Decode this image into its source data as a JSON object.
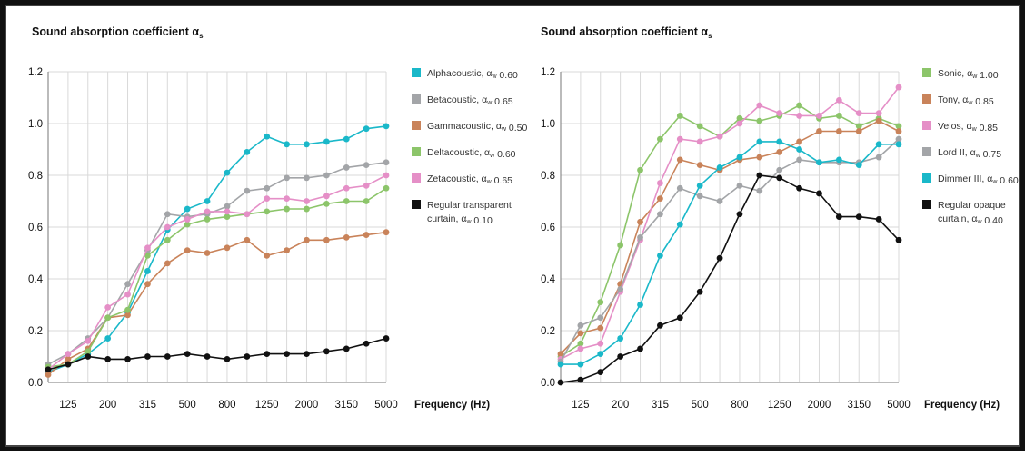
{
  "chart_data": [
    {
      "type": "line",
      "title": "Sound absorption coefficient α",
      "title_subscript": "s",
      "xlabel": "Frequency (Hz)",
      "ylabel": "",
      "ylim": [
        0,
        1.2
      ],
      "y_ticks": [
        "0.0",
        "0.2",
        "0.4",
        "0.6",
        "0.8",
        "1.0",
        "1.2"
      ],
      "x_frequencies": [
        100,
        125,
        160,
        200,
        250,
        315,
        400,
        500,
        630,
        800,
        1000,
        1250,
        1600,
        2000,
        2500,
        3150,
        4000,
        5000
      ],
      "x_tick_labels": [
        "125",
        "200",
        "315",
        "500",
        "800",
        "1250",
        "2000",
        "3150",
        "5000"
      ],
      "grid": true,
      "legend_position": "right",
      "series": [
        {
          "name": "Alphacoustic, αw 0.60",
          "color": "#1ab8c9",
          "values": [
            0.04,
            0.07,
            0.11,
            0.17,
            0.27,
            0.43,
            0.59,
            0.67,
            0.7,
            0.81,
            0.89,
            0.95,
            0.92,
            0.92,
            0.93,
            0.94,
            0.98,
            0.99
          ]
        },
        {
          "name": "Betacoustic, αw 0.65",
          "color": "#a3a5a8",
          "values": [
            0.07,
            0.11,
            0.17,
            0.25,
            0.38,
            0.51,
            0.65,
            0.64,
            0.65,
            0.68,
            0.74,
            0.75,
            0.79,
            0.79,
            0.8,
            0.83,
            0.84,
            0.85
          ]
        },
        {
          "name": "Gammacoustic, αw 0.50",
          "color": "#c9835a",
          "values": [
            0.03,
            0.09,
            0.13,
            0.25,
            0.26,
            0.38,
            0.46,
            0.51,
            0.5,
            0.52,
            0.55,
            0.49,
            0.51,
            0.55,
            0.55,
            0.56,
            0.57,
            0.58
          ]
        },
        {
          "name": "Deltacoustic, αw 0.60",
          "color": "#8cc56a",
          "values": [
            0.06,
            0.07,
            0.12,
            0.25,
            0.28,
            0.49,
            0.55,
            0.61,
            0.63,
            0.64,
            0.65,
            0.66,
            0.67,
            0.67,
            0.69,
            0.7,
            0.7,
            0.75
          ]
        },
        {
          "name": "Zetacoustic, αw 0.65",
          "color": "#e58fc7",
          "values": [
            0.05,
            0.11,
            0.16,
            0.29,
            0.34,
            0.52,
            0.6,
            0.63,
            0.66,
            0.66,
            0.65,
            0.71,
            0.71,
            0.7,
            0.72,
            0.75,
            0.76,
            0.8
          ]
        },
        {
          "name": "Regular transparent curtain, αw 0.10",
          "color": "#111111",
          "values": [
            0.05,
            0.07,
            0.1,
            0.09,
            0.09,
            0.1,
            0.1,
            0.11,
            0.1,
            0.09,
            0.1,
            0.11,
            0.11,
            0.11,
            0.12,
            0.13,
            0.15,
            0.17
          ]
        }
      ],
      "legend_lines": [
        [
          "Alphacoustic, αw 0.60"
        ],
        [
          "Betacoustic, αw 0.65"
        ],
        [
          "Gammacoustic, αw 0.50"
        ],
        [
          "Deltacoustic, αw 0.60"
        ],
        [
          "Zetacoustic, αw 0.65"
        ],
        [
          "Regular transparent",
          "curtain, αw 0.10"
        ]
      ]
    },
    {
      "type": "line",
      "title": "Sound absorption coefficient α",
      "title_subscript": "s",
      "xlabel": "Frequency (Hz)",
      "ylabel": "",
      "ylim": [
        0,
        1.2
      ],
      "y_ticks": [
        "0.0",
        "0.2",
        "0.4",
        "0.6",
        "0.8",
        "1.0",
        "1.2"
      ],
      "x_frequencies": [
        100,
        125,
        160,
        200,
        250,
        315,
        400,
        500,
        630,
        800,
        1000,
        1250,
        1600,
        2000,
        2500,
        3150,
        4000,
        5000
      ],
      "x_tick_labels": [
        "125",
        "200",
        "315",
        "500",
        "800",
        "1250",
        "2000",
        "3150",
        "5000"
      ],
      "grid": true,
      "legend_position": "right",
      "series": [
        {
          "name": "Sonic, αw 1.00",
          "color": "#8cc56a",
          "values": [
            0.1,
            0.15,
            0.31,
            0.53,
            0.82,
            0.94,
            1.03,
            0.99,
            0.95,
            1.02,
            1.01,
            1.03,
            1.07,
            1.02,
            1.03,
            0.99,
            1.02,
            0.99
          ]
        },
        {
          "name": "Tony, αw 0.85",
          "color": "#c9835a",
          "values": [
            0.11,
            0.19,
            0.21,
            0.38,
            0.62,
            0.71,
            0.86,
            0.84,
            0.82,
            0.86,
            0.87,
            0.89,
            0.93,
            0.97,
            0.97,
            0.97,
            1.01,
            0.97
          ]
        },
        {
          "name": "Velos, αw 0.85",
          "color": "#e58fc7",
          "values": [
            0.09,
            0.13,
            0.15,
            0.35,
            0.55,
            0.77,
            0.94,
            0.93,
            0.95,
            1.0,
            1.07,
            1.04,
            1.03,
            1.03,
            1.09,
            1.04,
            1.04,
            1.14
          ]
        },
        {
          "name": "Lord II, αw 0.75",
          "color": "#a3a5a8",
          "values": [
            0.08,
            0.22,
            0.25,
            0.36,
            0.56,
            0.65,
            0.75,
            0.72,
            0.7,
            0.76,
            0.74,
            0.82,
            0.86,
            0.85,
            0.85,
            0.85,
            0.87,
            0.94
          ]
        },
        {
          "name": "Dimmer III, αw 0.60",
          "color": "#1ab8c9",
          "values": [
            0.07,
            0.07,
            0.11,
            0.17,
            0.3,
            0.49,
            0.61,
            0.76,
            0.83,
            0.87,
            0.93,
            0.93,
            0.9,
            0.85,
            0.86,
            0.84,
            0.92,
            0.92
          ]
        },
        {
          "name": "Regular opaque curtain, αw 0.40",
          "color": "#111111",
          "values": [
            0.0,
            0.01,
            0.04,
            0.1,
            0.13,
            0.22,
            0.25,
            0.35,
            0.48,
            0.65,
            0.8,
            0.79,
            0.75,
            0.73,
            0.64,
            0.64,
            0.63,
            0.55
          ]
        }
      ],
      "legend_lines": [
        [
          "Sonic, αw 1.00"
        ],
        [
          "Tony, αw 0.85"
        ],
        [
          "Velos, αw 0.85"
        ],
        [
          "Lord II, αw 0.75"
        ],
        [
          "Dimmer III, αw 0.60"
        ],
        [
          "Regular opaque",
          "curtain, αw 0.40"
        ]
      ]
    }
  ]
}
